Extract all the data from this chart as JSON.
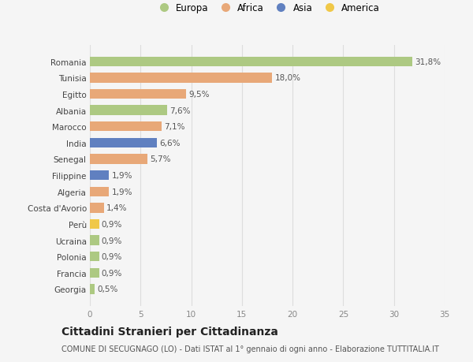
{
  "countries": [
    "Romania",
    "Tunisia",
    "Egitto",
    "Albania",
    "Marocco",
    "India",
    "Senegal",
    "Filippine",
    "Algeria",
    "Costa d'Avorio",
    "Perù",
    "Ucraina",
    "Polonia",
    "Francia",
    "Georgia"
  ],
  "values": [
    31.8,
    18.0,
    9.5,
    7.6,
    7.1,
    6.6,
    5.7,
    1.9,
    1.9,
    1.4,
    0.9,
    0.9,
    0.9,
    0.9,
    0.5
  ],
  "labels": [
    "31,8%",
    "18,0%",
    "9,5%",
    "7,6%",
    "7,1%",
    "6,6%",
    "5,7%",
    "1,9%",
    "1,9%",
    "1,4%",
    "0,9%",
    "0,9%",
    "0,9%",
    "0,9%",
    "0,5%"
  ],
  "continents": [
    "Europa",
    "Africa",
    "Africa",
    "Europa",
    "Africa",
    "Asia",
    "Africa",
    "Asia",
    "Africa",
    "Africa",
    "America",
    "Europa",
    "Europa",
    "Europa",
    "Europa"
  ],
  "continent_colors": {
    "Europa": "#adc982",
    "Africa": "#e8a878",
    "Asia": "#6080c0",
    "America": "#f0c848"
  },
  "legend_order": [
    "Europa",
    "Africa",
    "Asia",
    "America"
  ],
  "title": "Cittadini Stranieri per Cittadinanza",
  "subtitle": "COMUNE DI SECUGNAGO (LO) - Dati ISTAT al 1° gennaio di ogni anno - Elaborazione TUTTITALIA.IT",
  "xlim": [
    0,
    35
  ],
  "xticks": [
    0,
    5,
    10,
    15,
    20,
    25,
    30,
    35
  ],
  "bg_color": "#f5f5f5",
  "grid_color": "#dddddd",
  "bar_height": 0.6,
  "label_fontsize": 7.5,
  "title_fontsize": 10,
  "subtitle_fontsize": 7,
  "tick_fontsize": 7.5,
  "ytick_fontsize": 7.5
}
